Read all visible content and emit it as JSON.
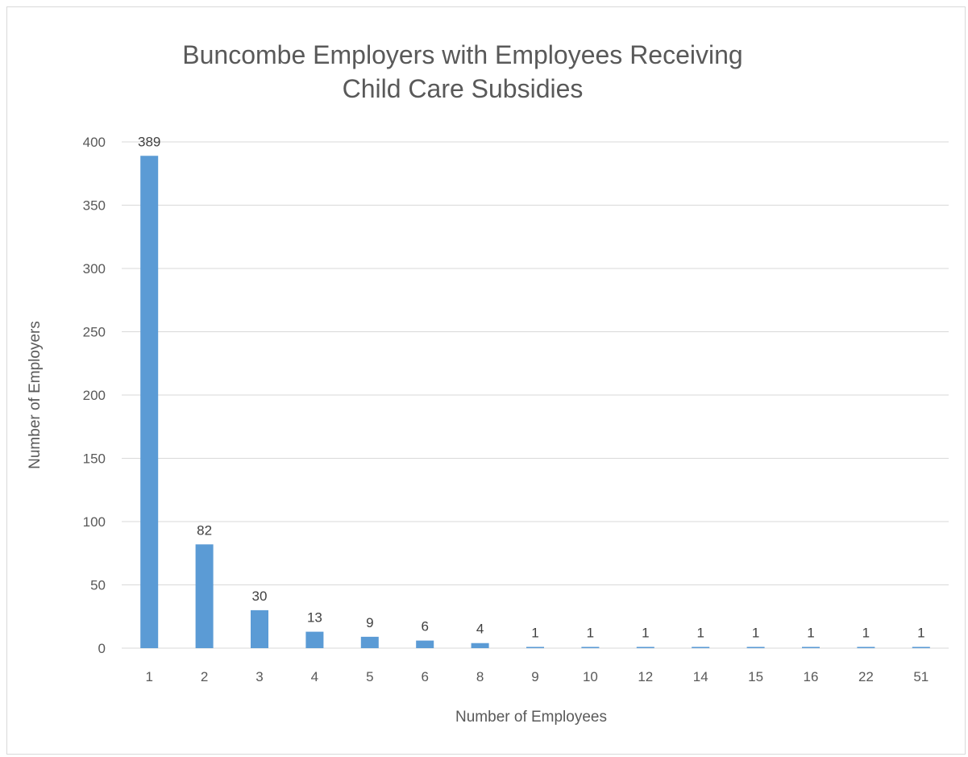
{
  "chart_data": {
    "type": "bar",
    "title_lines": [
      "Buncombe Employers with Employees Receiving",
      "Child Care Subsidies"
    ],
    "xlabel": "Number of Employees",
    "ylabel": "Number of Employers",
    "categories": [
      "1",
      "2",
      "3",
      "4",
      "5",
      "6",
      "8",
      "9",
      "10",
      "12",
      "14",
      "15",
      "16",
      "22",
      "51"
    ],
    "values": [
      389,
      82,
      30,
      13,
      9,
      6,
      4,
      1,
      1,
      1,
      1,
      1,
      1,
      1,
      1
    ],
    "data_labels": [
      "389",
      "82",
      "30",
      "13",
      "9",
      "6",
      "4",
      "1",
      "1",
      "1",
      "1",
      "1",
      "1",
      "1",
      "1"
    ],
    "ylim": [
      0,
      400
    ],
    "yticks": [
      0,
      50,
      100,
      150,
      200,
      250,
      300,
      350,
      400
    ],
    "ytick_labels": [
      "0",
      "50",
      "100",
      "150",
      "200",
      "250",
      "300",
      "350",
      "400"
    ],
    "grid": true,
    "legend": "none",
    "bar_color": "#5b9bd5",
    "grid_color": "#d9d9d9"
  }
}
